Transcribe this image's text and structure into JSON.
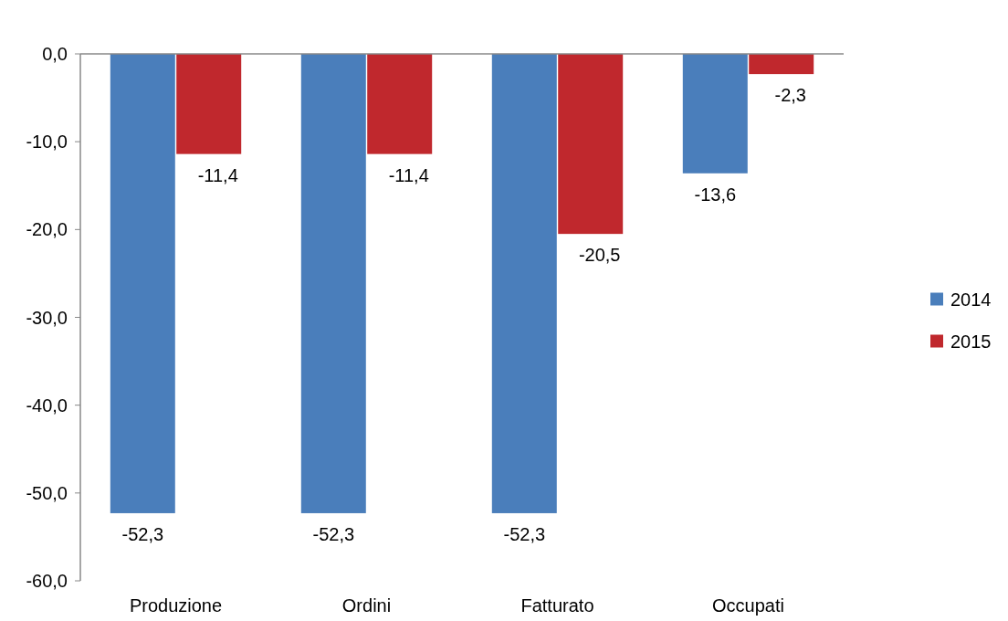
{
  "chart_data": {
    "type": "bar",
    "categories": [
      "Produzione",
      "Ordini",
      "Fatturato",
      "Occupati"
    ],
    "series": [
      {
        "name": "2014",
        "color": "#4a7ebb",
        "values": [
          -52.3,
          -52.3,
          -52.3,
          -13.6
        ],
        "value_labels": [
          "-52,3",
          "-52,3",
          "-52,3",
          "-13,6"
        ]
      },
      {
        "name": "2015",
        "color": "#c0282d",
        "values": [
          -11.4,
          -11.4,
          -20.5,
          -2.3
        ],
        "value_labels": [
          "-11,4",
          "-11,4",
          "-20,5",
          "-2,3"
        ]
      }
    ],
    "ylim": [
      -60,
      0
    ],
    "yticks": [
      {
        "value": 0,
        "label": "0,0"
      },
      {
        "value": -10,
        "label": "-10,0"
      },
      {
        "value": -20,
        "label": "-20,0"
      },
      {
        "value": -30,
        "label": "-30,0"
      },
      {
        "value": -40,
        "label": "-40,0"
      },
      {
        "value": -50,
        "label": "-50,0"
      },
      {
        "value": -60,
        "label": "-60,0"
      }
    ],
    "grid": false,
    "legend": "right"
  }
}
